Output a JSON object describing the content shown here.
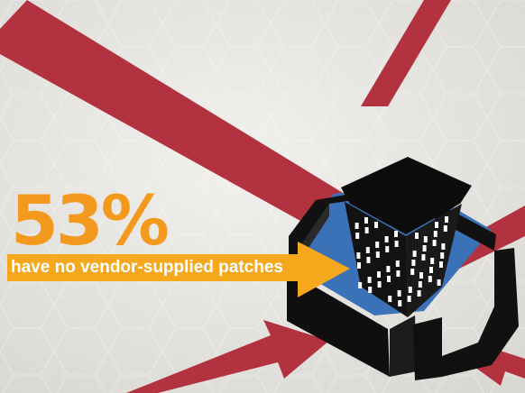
{
  "stat": {
    "value": "53%",
    "caption": "have no vendor-supplied patches"
  },
  "colors": {
    "background": "#ecebe7",
    "arrow_red": "#b2323f",
    "banner_yellow": "#f5a81c",
    "number_orange": "#f39a1e",
    "moat_blue": "#3b71b6",
    "building_black": "#101010",
    "window_white": "#ffffff"
  },
  "icons": [
    "building-icon",
    "wall-icon",
    "moat-icon",
    "arrow-icon"
  ]
}
